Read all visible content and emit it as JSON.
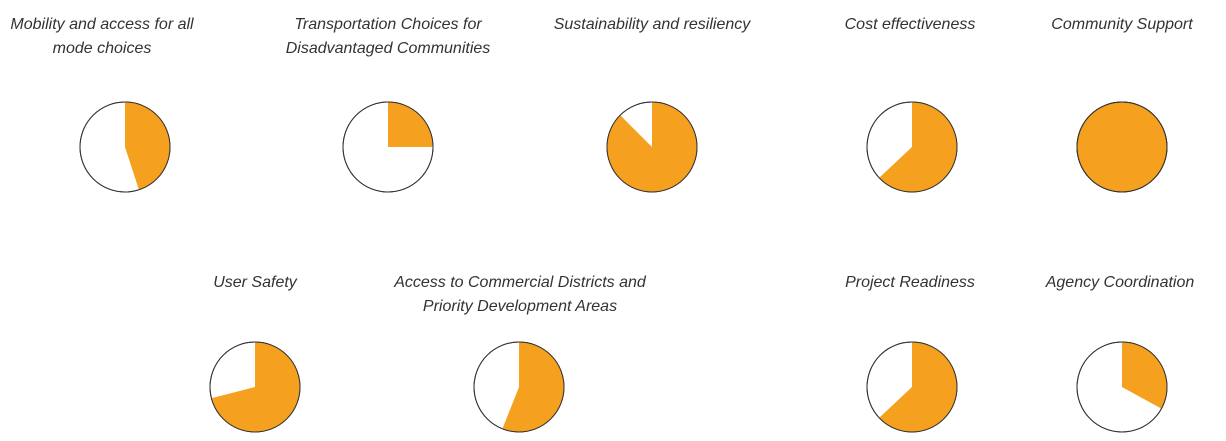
{
  "chart_data": [
    {
      "type": "pie",
      "title": [
        "Mobility and access for all",
        "mode choices"
      ],
      "values": [
        45
      ],
      "color": "#f5a11f"
    },
    {
      "type": "pie",
      "title": [
        "Transportation Choices for",
        "Disadvantaged Communities"
      ],
      "values": [
        25
      ],
      "color": "#f5a11f"
    },
    {
      "type": "pie",
      "title": [
        "Sustainability and resiliency"
      ],
      "values": [
        87.5
      ],
      "color": "#f5a11f"
    },
    {
      "type": "pie",
      "title": [
        "Cost effectiveness"
      ],
      "values": [
        63
      ],
      "color": "#f5a11f"
    },
    {
      "type": "pie",
      "title": [
        "Community Support"
      ],
      "values": [
        100
      ],
      "color": "#f5a11f"
    },
    {
      "type": "pie",
      "title": [
        "User Safety"
      ],
      "values": [
        71
      ],
      "color": "#f5a11f"
    },
    {
      "type": "pie",
      "title": [
        "Access to Commercial Districts and",
        "Priority Development Areas"
      ],
      "values": [
        56
      ],
      "color": "#f5a11f"
    },
    {
      "type": "pie",
      "title": [
        "Project Readiness"
      ],
      "values": [
        63
      ],
      "color": "#f5a11f"
    },
    {
      "type": "pie",
      "title": [
        "Agency Coordination"
      ],
      "values": [
        33
      ],
      "color": "#f5a11f"
    }
  ]
}
